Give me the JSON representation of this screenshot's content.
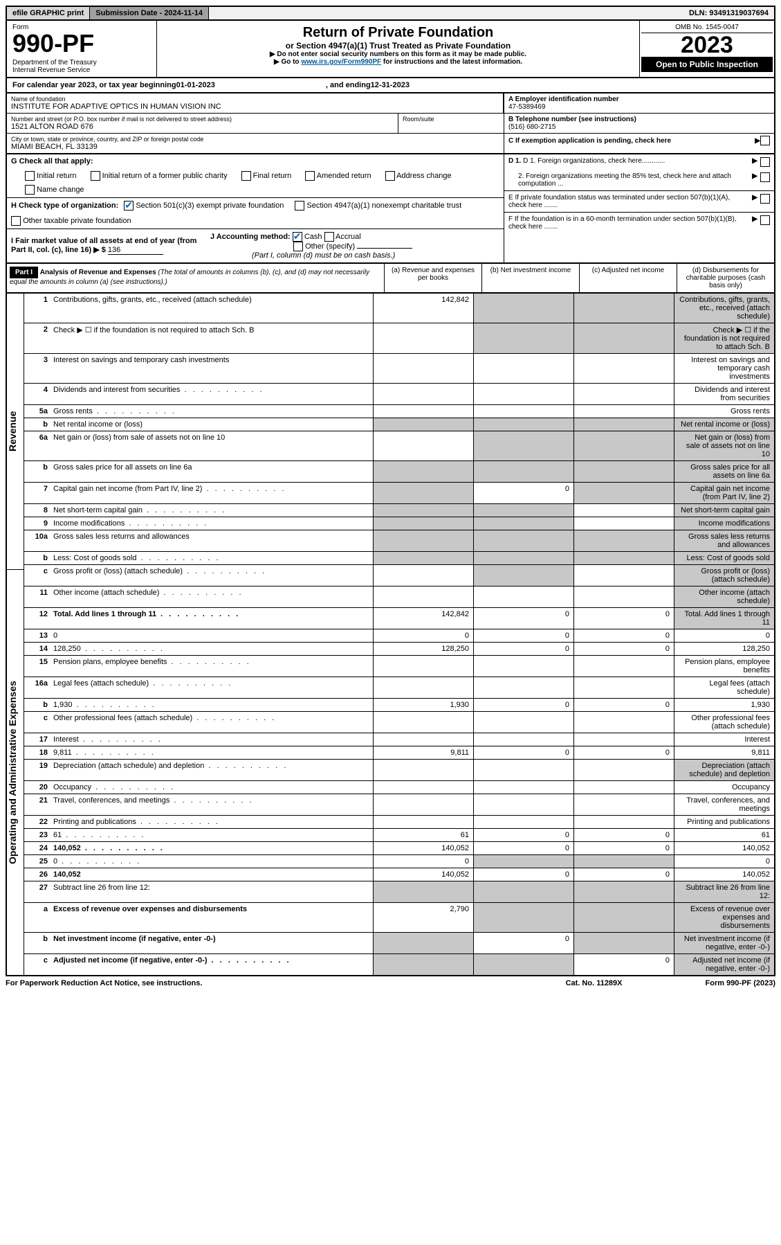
{
  "topbar": {
    "efile": "efile GRAPHIC print",
    "sub_label": "Submission Date - 2024-11-14",
    "dln": "DLN: 93491319037694"
  },
  "header": {
    "form_label": "Form",
    "form_no": "990-PF",
    "dept": "Department of the Treasury\nInternal Revenue Service",
    "title": "Return of Private Foundation",
    "subtitle": "or Section 4947(a)(1) Trust Treated as Private Foundation",
    "instr1": "▶ Do not enter social security numbers on this form as it may be made public.",
    "instr2_pre": "▶ Go to ",
    "instr2_link": "www.irs.gov/Form990PF",
    "instr2_post": " for instructions and the latest information.",
    "omb": "OMB No. 1545-0047",
    "year": "2023",
    "open": "Open to Public Inspection"
  },
  "calyear": {
    "text_pre": "For calendar year 2023, or tax year beginning ",
    "begin": "01-01-2023",
    "text_mid": ", and ending ",
    "end": "12-31-2023"
  },
  "entity": {
    "name_label": "Name of foundation",
    "name": "INSTITUTE FOR ADAPTIVE OPTICS IN HUMAN VISION INC",
    "addr_label": "Number and street (or P.O. box number if mail is not delivered to street address)",
    "addr": "1521 ALTON ROAD 676",
    "room_label": "Room/suite",
    "city_label": "City or town, state or province, country, and ZIP or foreign postal code",
    "city": "MIAMI BEACH, FL  33139",
    "ein_label": "A Employer identification number",
    "ein": "47-5389469",
    "phone_label": "B Telephone number (see instructions)",
    "phone": "(516) 680-2715",
    "c_label": "C If exemption application is pending, check here"
  },
  "checks": {
    "g_label": "G Check all that apply:",
    "g_opts": [
      "Initial return",
      "Initial return of a former public charity",
      "Final return",
      "Amended return",
      "Address change",
      "Name change"
    ],
    "h_label": "H Check type of organization:",
    "h_opts": [
      "Section 501(c)(3) exempt private foundation",
      "Section 4947(a)(1) nonexempt charitable trust",
      "Other taxable private foundation"
    ],
    "i_label": "I Fair market value of all assets at end of year (from Part II, col. (c), line 16) ▶ $",
    "i_value": "136",
    "j_label": "J Accounting method:",
    "j_opts": [
      "Cash",
      "Accrual",
      "Other (specify)"
    ],
    "j_note": "(Part I, column (d) must be on cash basis.)",
    "d1": "D 1. Foreign organizations, check here............",
    "d2": "2. Foreign organizations meeting the 85% test, check here and attach computation ...",
    "e": "E  If private foundation status was terminated under section 507(b)(1)(A), check here .......",
    "f": "F  If the foundation is in a 60-month termination under section 507(b)(1)(B), check here .......",
    "h_checked": 0,
    "j_checked": 0
  },
  "part1": {
    "label": "Part I",
    "title": "Analysis of Revenue and Expenses",
    "note": "(The total of amounts in columns (b), (c), and (d) may not necessarily equal the amounts in column (a) (see instructions).)",
    "cols": [
      "(a)  Revenue and expenses per books",
      "(b)  Net investment income",
      "(c)  Adjusted net income",
      "(d)  Disbursements for charitable purposes (cash basis only)"
    ]
  },
  "side": {
    "revenue": "Revenue",
    "expenses": "Operating and Administrative Expenses"
  },
  "rows": [
    {
      "n": "1",
      "d": "Contributions, gifts, grants, etc., received (attach schedule)",
      "a": "142,842",
      "sb": true,
      "sc": true,
      "sd": true
    },
    {
      "n": "2",
      "d": "Check ▶ ☐ if the foundation is not required to attach Sch. B",
      "sa": false,
      "sb": true,
      "sc": true,
      "sd": true
    },
    {
      "n": "3",
      "d": "Interest on savings and temporary cash investments"
    },
    {
      "n": "4",
      "d": "Dividends and interest from securities",
      "dots": true
    },
    {
      "n": "5a",
      "d": "Gross rents",
      "dots": true
    },
    {
      "n": "b",
      "d": "Net rental income or (loss)",
      "sb": true,
      "sc": true,
      "sd": true,
      "sa": true
    },
    {
      "n": "6a",
      "d": "Net gain or (loss) from sale of assets not on line 10",
      "sb": true,
      "sc": true,
      "sd": true
    },
    {
      "n": "b",
      "d": "Gross sales price for all assets on line 6a",
      "sa": true,
      "sb": true,
      "sc": true,
      "sd": true
    },
    {
      "n": "7",
      "d": "Capital gain net income (from Part IV, line 2)",
      "dots": true,
      "sa": true,
      "b": "0",
      "sc": true,
      "sd": true
    },
    {
      "n": "8",
      "d": "Net short-term capital gain",
      "dots": true,
      "sa": true,
      "sb": true,
      "sd": true
    },
    {
      "n": "9",
      "d": "Income modifications",
      "dots": true,
      "sa": true,
      "sb": true,
      "sd": true
    },
    {
      "n": "10a",
      "d": "Gross sales less returns and allowances",
      "sa": true,
      "sb": true,
      "sc": true,
      "sd": true
    },
    {
      "n": "b",
      "d": "Less: Cost of goods sold",
      "dots": true,
      "sa": true,
      "sb": true,
      "sc": true,
      "sd": true
    },
    {
      "n": "c",
      "d": "Gross profit or (loss) (attach schedule)",
      "dots": true,
      "sb": true,
      "sd": true
    },
    {
      "n": "11",
      "d": "Other income (attach schedule)",
      "dots": true,
      "sd": true
    },
    {
      "n": "12",
      "d": "Total. Add lines 1 through 11",
      "dots": true,
      "bold": true,
      "a": "142,842",
      "b": "0",
      "c": "0",
      "sd": true
    },
    {
      "n": "13",
      "d": "0",
      "a": "0",
      "b": "0",
      "c": "0"
    },
    {
      "n": "14",
      "d": "128,250",
      "dots": true,
      "a": "128,250",
      "b": "0",
      "c": "0"
    },
    {
      "n": "15",
      "d": "Pension plans, employee benefits",
      "dots": true
    },
    {
      "n": "16a",
      "d": "Legal fees (attach schedule)",
      "dots": true
    },
    {
      "n": "b",
      "d": "1,930",
      "dots": true,
      "a": "1,930",
      "b": "0",
      "c": "0"
    },
    {
      "n": "c",
      "d": "Other professional fees (attach schedule)",
      "dots": true
    },
    {
      "n": "17",
      "d": "Interest",
      "dots": true
    },
    {
      "n": "18",
      "d": "9,811",
      "dots": true,
      "a": "9,811",
      "b": "0",
      "c": "0"
    },
    {
      "n": "19",
      "d": "Depreciation (attach schedule) and depletion",
      "dots": true,
      "sd": true
    },
    {
      "n": "20",
      "d": "Occupancy",
      "dots": true
    },
    {
      "n": "21",
      "d": "Travel, conferences, and meetings",
      "dots": true
    },
    {
      "n": "22",
      "d": "Printing and publications",
      "dots": true
    },
    {
      "n": "23",
      "d": "61",
      "dots": true,
      "a": "61",
      "b": "0",
      "c": "0"
    },
    {
      "n": "24",
      "d": "140,052",
      "dots": true,
      "bold": true,
      "a": "140,052",
      "b": "0",
      "c": "0"
    },
    {
      "n": "25",
      "d": "0",
      "dots": true,
      "a": "0",
      "sb": true,
      "sc": true
    },
    {
      "n": "26",
      "d": "140,052",
      "bold": true,
      "a": "140,052",
      "b": "0",
      "c": "0"
    },
    {
      "n": "27",
      "d": "Subtract line 26 from line 12:",
      "sa": true,
      "sb": true,
      "sc": true,
      "sd": true
    },
    {
      "n": "a",
      "d": "Excess of revenue over expenses and disbursements",
      "bold": true,
      "a": "2,790",
      "sb": true,
      "sc": true,
      "sd": true
    },
    {
      "n": "b",
      "d": "Net investment income (if negative, enter -0-)",
      "bold": true,
      "sa": true,
      "b": "0",
      "sc": true,
      "sd": true
    },
    {
      "n": "c",
      "d": "Adjusted net income (if negative, enter -0-)",
      "dots": true,
      "bold": true,
      "sa": true,
      "sb": true,
      "c": "0",
      "sd": true
    }
  ],
  "footer": {
    "left": "For Paperwork Reduction Act Notice, see instructions.",
    "center": "Cat. No. 11289X",
    "right": "Form 990-PF (2023)"
  },
  "colors": {
    "shaded": "#c8c8c8",
    "link": "#005a9c",
    "check": "#0066cc"
  }
}
